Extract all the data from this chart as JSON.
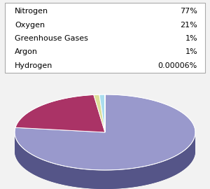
{
  "labels": [
    "Nitrogen",
    "Oxygen",
    "Greenhouse Gases",
    "Argon",
    "Hydrogen"
  ],
  "display_pcts": [
    "77%",
    "21%",
    "1%",
    "1%",
    "0.00006%"
  ],
  "values": [
    77,
    21,
    1,
    1,
    6e-05
  ],
  "pie_colors": [
    "#9999cc",
    "#aa3366",
    "#dddd99",
    "#aaddee",
    "#bbbbdd"
  ],
  "side_colors": [
    "#555588",
    "#6b2244",
    "#999966",
    "#6699aa",
    "#777799"
  ],
  "depth_base_color": "#555588",
  "background_color": "#f2f2f2",
  "legend_font_size": 8.0
}
